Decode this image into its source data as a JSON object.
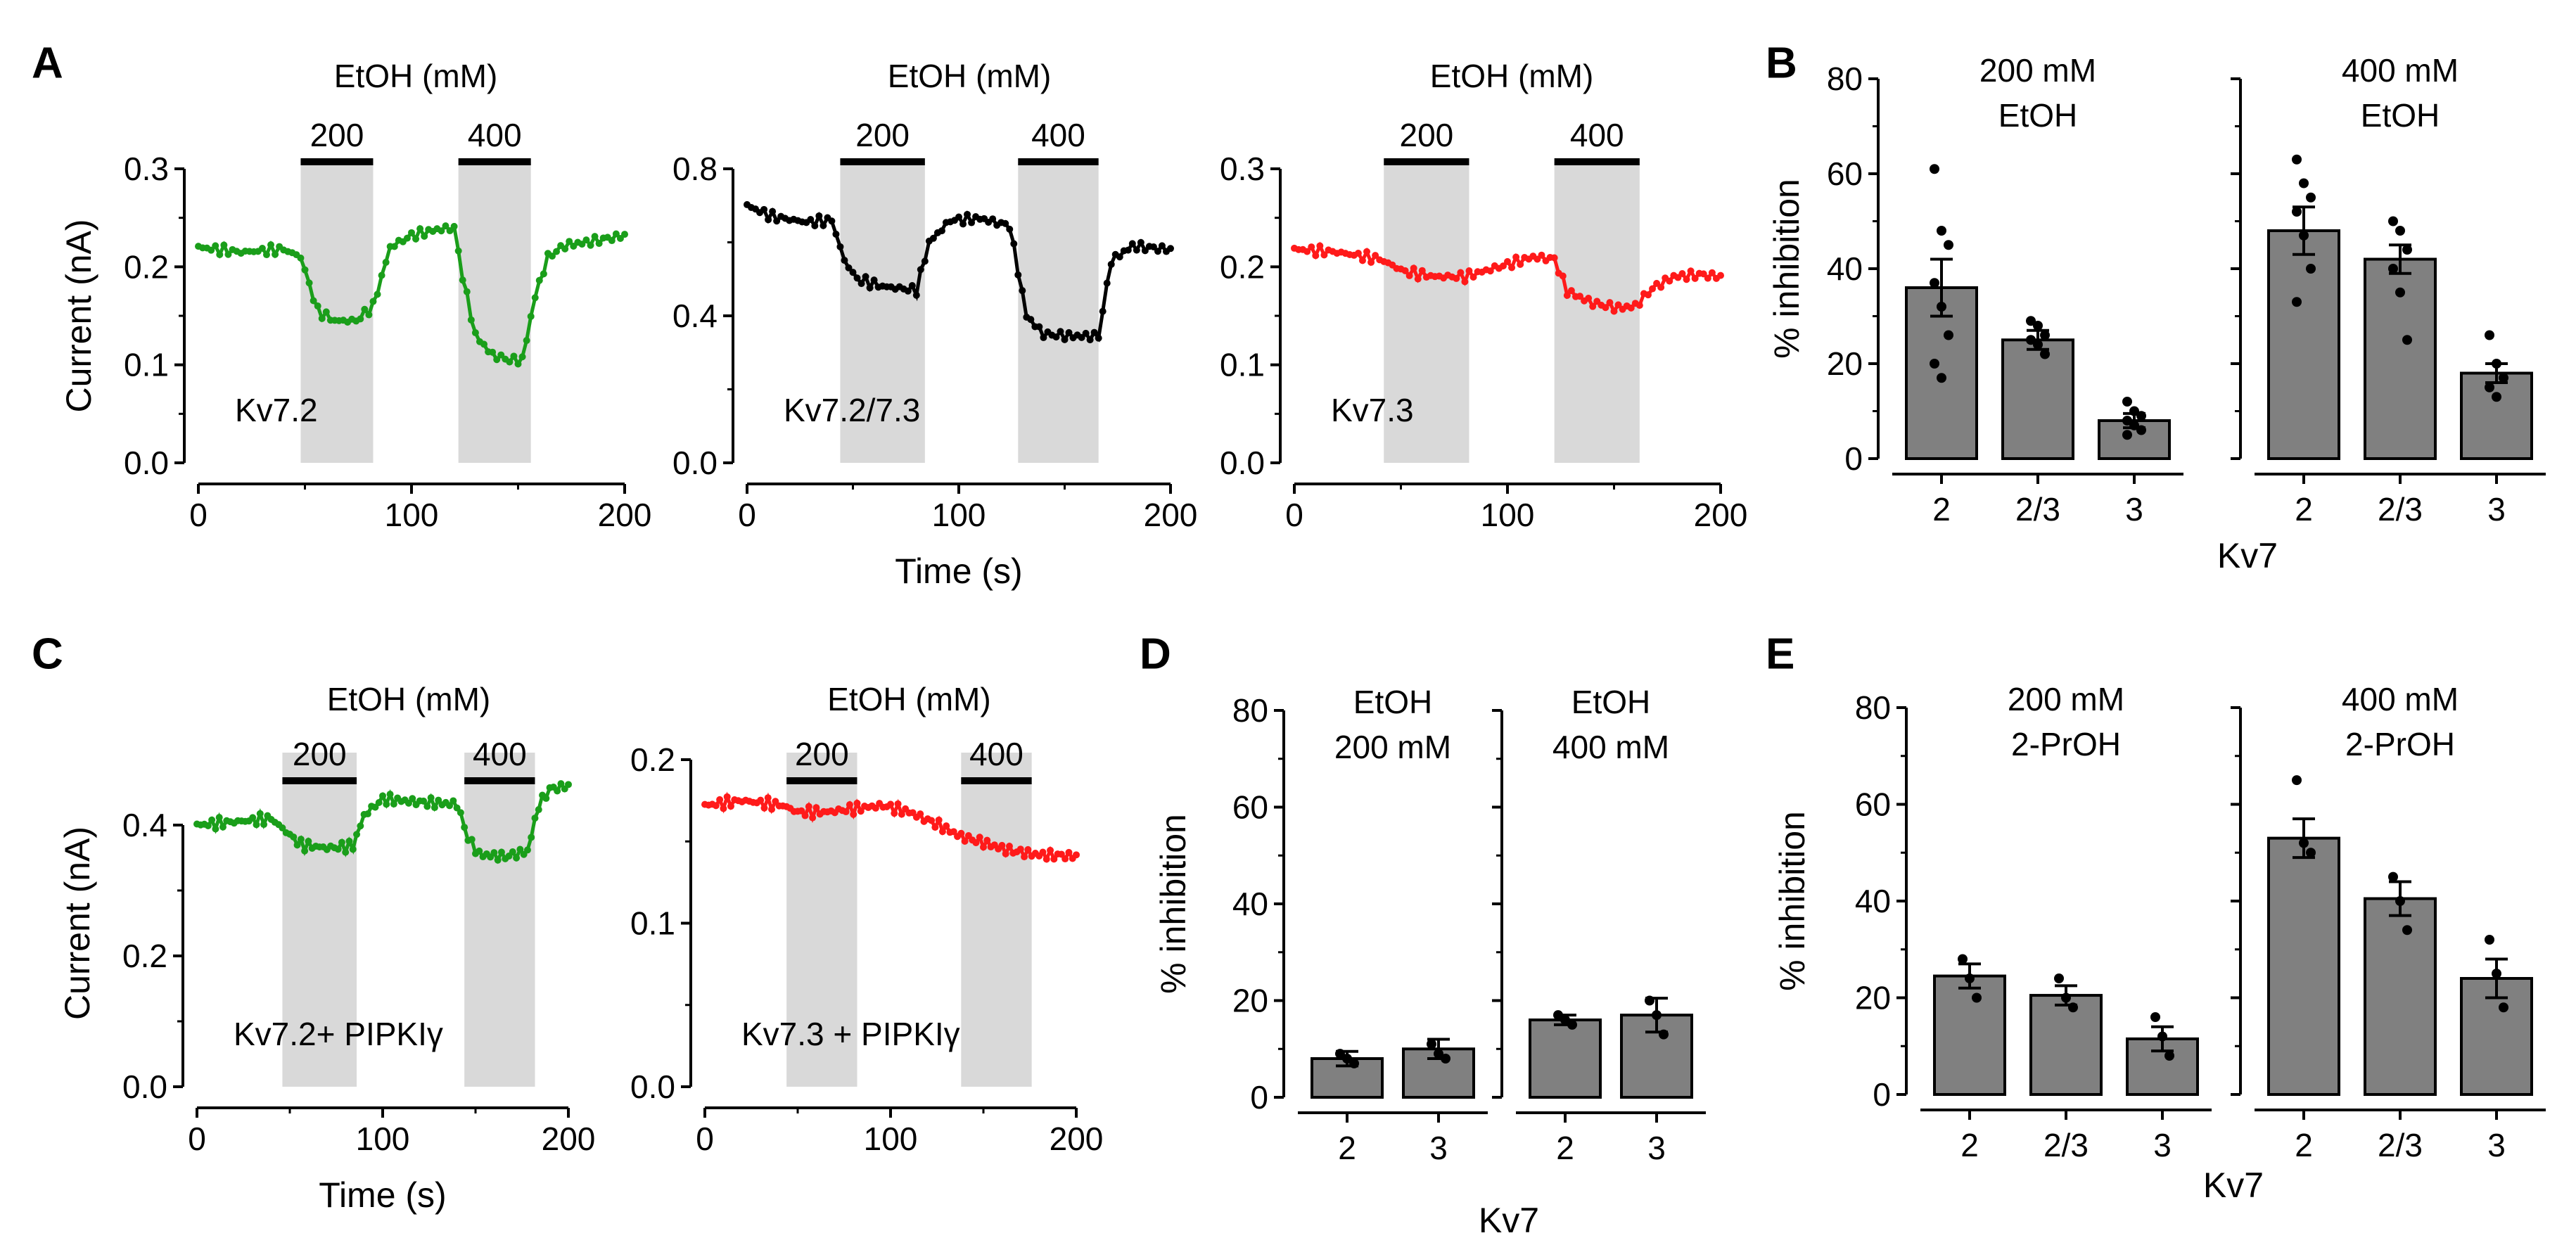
{
  "panel_labels": [
    "A",
    "B",
    "C",
    "D",
    "E"
  ],
  "axis_titles": {
    "current": "Current (nA)",
    "time": "Time (s)",
    "inhibition": "% inhibition",
    "kv7": "Kv7"
  },
  "colors": {
    "green": "#1a9e1a",
    "black": "#000000",
    "red": "#ff1a1a",
    "bar": "#808080",
    "shade": "#d9d9d9"
  },
  "chart_data": [
    {
      "id": "A1",
      "type": "line",
      "title": "EtOH  (mM)",
      "label": "Kv7.2",
      "color": "green",
      "xlim": [
        0,
        200
      ],
      "xticks": [
        0,
        100,
        200
      ],
      "ylim": [
        0,
        0.3
      ],
      "yticks": [
        0.0,
        0.1,
        0.2,
        0.3
      ],
      "ytick_labels": [
        "0.0",
        "0.1",
        "0.2",
        "0.3"
      ],
      "xlabel": "",
      "ylabel": "Current (nA)",
      "applications": [
        {
          "label": "200",
          "start": 48,
          "end": 82
        },
        {
          "label": "400",
          "start": 122,
          "end": 156
        }
      ],
      "trace": [
        [
          0,
          0.22
        ],
        [
          20,
          0.215
        ],
        [
          40,
          0.218
        ],
        [
          48,
          0.21
        ],
        [
          56,
          0.155
        ],
        [
          64,
          0.145
        ],
        [
          74,
          0.145
        ],
        [
          82,
          0.16
        ],
        [
          90,
          0.22
        ],
        [
          100,
          0.232
        ],
        [
          112,
          0.238
        ],
        [
          120,
          0.24
        ],
        [
          124,
          0.19
        ],
        [
          130,
          0.13
        ],
        [
          138,
          0.11
        ],
        [
          146,
          0.105
        ],
        [
          152,
          0.105
        ],
        [
          158,
          0.17
        ],
        [
          164,
          0.21
        ],
        [
          172,
          0.222
        ],
        [
          182,
          0.225
        ],
        [
          200,
          0.232
        ]
      ]
    },
    {
      "id": "A2",
      "type": "line",
      "title": "EtOH  (mM)",
      "label": "Kv7.2/7.3",
      "color": "black",
      "xlim": [
        0,
        200
      ],
      "xticks": [
        0,
        100,
        200
      ],
      "ylim": [
        0,
        0.8
      ],
      "yticks": [
        0.0,
        0.4,
        0.8
      ],
      "ytick_labels": [
        "0.0",
        "0.4",
        "0.8"
      ],
      "xlabel": "Time (s)",
      "ylabel": "",
      "applications": [
        {
          "label": "200",
          "start": 44,
          "end": 84
        },
        {
          "label": "400",
          "start": 128,
          "end": 166
        }
      ],
      "trace": [
        [
          0,
          0.7
        ],
        [
          12,
          0.67
        ],
        [
          28,
          0.655
        ],
        [
          40,
          0.66
        ],
        [
          46,
          0.55
        ],
        [
          52,
          0.5
        ],
        [
          64,
          0.48
        ],
        [
          80,
          0.47
        ],
        [
          86,
          0.6
        ],
        [
          96,
          0.66
        ],
        [
          110,
          0.665
        ],
        [
          124,
          0.645
        ],
        [
          132,
          0.4
        ],
        [
          140,
          0.35
        ],
        [
          154,
          0.345
        ],
        [
          166,
          0.345
        ],
        [
          172,
          0.55
        ],
        [
          182,
          0.59
        ],
        [
          200,
          0.58
        ]
      ]
    },
    {
      "id": "A3",
      "type": "line",
      "title": "EtOH  (mM)",
      "label": "Kv7.3",
      "color": "red",
      "xlim": [
        0,
        200
      ],
      "xticks": [
        0,
        100,
        200
      ],
      "ylim": [
        0,
        0.3
      ],
      "yticks": [
        0.0,
        0.1,
        0.2,
        0.3
      ],
      "ytick_labels": [
        "0.0",
        "0.1",
        "0.2",
        "0.3"
      ],
      "xlabel": "",
      "ylabel": "",
      "applications": [
        {
          "label": "200",
          "start": 42,
          "end": 82
        },
        {
          "label": "400",
          "start": 122,
          "end": 162
        }
      ],
      "trace": [
        [
          0,
          0.218
        ],
        [
          20,
          0.215
        ],
        [
          40,
          0.208
        ],
        [
          52,
          0.195
        ],
        [
          66,
          0.19
        ],
        [
          80,
          0.19
        ],
        [
          96,
          0.2
        ],
        [
          112,
          0.21
        ],
        [
          122,
          0.208
        ],
        [
          128,
          0.175
        ],
        [
          140,
          0.163
        ],
        [
          152,
          0.158
        ],
        [
          160,
          0.16
        ],
        [
          168,
          0.178
        ],
        [
          178,
          0.19
        ],
        [
          190,
          0.192
        ],
        [
          200,
          0.19
        ]
      ]
    },
    {
      "id": "C1",
      "type": "line",
      "title": "EtOH  (mM)",
      "label": "Kv7.2+ PIPKIγ",
      "color": "green",
      "xlim": [
        0,
        200
      ],
      "xticks": [
        0,
        100,
        200
      ],
      "ylim": [
        0,
        0.5
      ],
      "yticks": [
        0.0,
        0.2,
        0.4
      ],
      "ytick_labels": [
        "0.0",
        "0.2",
        "0.4"
      ],
      "xlabel": "Time (s)",
      "ylabel": "Current (nA)",
      "applications": [
        {
          "label": "200",
          "start": 46,
          "end": 86
        },
        {
          "label": "400",
          "start": 144,
          "end": 182
        }
      ],
      "trace": [
        [
          0,
          0.4
        ],
        [
          20,
          0.405
        ],
        [
          40,
          0.41
        ],
        [
          48,
          0.39
        ],
        [
          56,
          0.37
        ],
        [
          70,
          0.365
        ],
        [
          84,
          0.368
        ],
        [
          90,
          0.415
        ],
        [
          100,
          0.44
        ],
        [
          120,
          0.435
        ],
        [
          140,
          0.432
        ],
        [
          146,
          0.38
        ],
        [
          152,
          0.355
        ],
        [
          166,
          0.352
        ],
        [
          178,
          0.36
        ],
        [
          184,
          0.43
        ],
        [
          190,
          0.455
        ],
        [
          200,
          0.46
        ]
      ]
    },
    {
      "id": "C2",
      "type": "line",
      "title": "EtOH  (mM)",
      "label": "Kv7.3  + PIPKIγ",
      "color": "red",
      "xlim": [
        0,
        200
      ],
      "xticks": [
        0,
        100,
        200
      ],
      "ylim": [
        0,
        0.2
      ],
      "yticks": [
        0.0,
        0.1,
        0.2
      ],
      "ytick_labels": [
        "0.0",
        "0.1",
        "0.2"
      ],
      "xlabel": "",
      "ylabel": "",
      "applications": [
        {
          "label": "200",
          "start": 44,
          "end": 82
        },
        {
          "label": "400",
          "start": 138,
          "end": 176
        }
      ],
      "trace": [
        [
          0,
          0.172
        ],
        [
          20,
          0.175
        ],
        [
          42,
          0.172
        ],
        [
          50,
          0.168
        ],
        [
          66,
          0.168
        ],
        [
          80,
          0.17
        ],
        [
          96,
          0.172
        ],
        [
          110,
          0.168
        ],
        [
          126,
          0.16
        ],
        [
          138,
          0.153
        ],
        [
          148,
          0.15
        ],
        [
          162,
          0.145
        ],
        [
          178,
          0.142
        ],
        [
          200,
          0.141
        ]
      ]
    },
    {
      "id": "B",
      "type": "bar",
      "ylabel": "% inhibition",
      "xlabel": "Kv7",
      "ylim": [
        0,
        80
      ],
      "yticks": [
        0,
        20,
        40,
        60,
        80
      ],
      "ytick_labels": [
        "0",
        "20",
        "40",
        "60",
        "80"
      ],
      "groups": [
        {
          "title": [
            "200 mM",
            "EtOH"
          ],
          "categories": [
            "2",
            "2/3",
            "3"
          ],
          "values": [
            36,
            25,
            8
          ],
          "errors": [
            6,
            2,
            1.5
          ],
          "points": [
            [
              61,
              48,
              45,
              37,
              32,
              26,
              20,
              17
            ],
            [
              29,
              28,
              26,
              25,
              24,
              22
            ],
            [
              12,
              10,
              9,
              8,
              7,
              6,
              5
            ]
          ]
        },
        {
          "title": [
            "400 mM",
            "EtOH"
          ],
          "categories": [
            "2",
            "2/3",
            "3"
          ],
          "values": [
            48,
            42,
            18
          ],
          "errors": [
            5,
            3,
            2
          ],
          "points": [
            [
              63,
              58,
              55,
              52,
              47,
              40,
              33
            ],
            [
              50,
              48,
              44,
              40,
              35,
              25
            ],
            [
              26,
              20,
              17,
              15,
              13
            ]
          ]
        }
      ]
    },
    {
      "id": "D",
      "type": "bar",
      "ylabel": "% inhibition",
      "xlabel": "Kv7",
      "ylim": [
        0,
        80
      ],
      "yticks": [
        0,
        20,
        40,
        60,
        80
      ],
      "ytick_labels": [
        "0",
        "20",
        "40",
        "60",
        "80"
      ],
      "groups": [
        {
          "title": [
            "EtOH",
            "200 mM"
          ],
          "categories": [
            "2",
            "3"
          ],
          "values": [
            8,
            10
          ],
          "errors": [
            1.5,
            2
          ],
          "points": [
            [
              9,
              8,
              7
            ],
            [
              11,
              9,
              8
            ]
          ]
        },
        {
          "title": [
            "EtOH",
            "400 mM"
          ],
          "categories": [
            "2",
            "3"
          ],
          "values": [
            16,
            17
          ],
          "errors": [
            1,
            3.5
          ],
          "points": [
            [
              17,
              16,
              15
            ],
            [
              20,
              17,
              13
            ]
          ]
        }
      ]
    },
    {
      "id": "E",
      "type": "bar",
      "ylabel": "% inhibition",
      "xlabel": "Kv7",
      "ylim": [
        0,
        80
      ],
      "yticks": [
        0,
        20,
        40,
        60,
        80
      ],
      "ytick_labels": [
        "0",
        "20",
        "40",
        "60",
        "80"
      ],
      "groups": [
        {
          "title": [
            "200 mM",
            "2-PrOH"
          ],
          "categories": [
            "2",
            "2/3",
            "3"
          ],
          "values": [
            24.5,
            20.5,
            11.5
          ],
          "errors": [
            2.5,
            2,
            2.5
          ],
          "points": [
            [
              28,
              24,
              20
            ],
            [
              24,
              20,
              18
            ],
            [
              16,
              12,
              8
            ]
          ]
        },
        {
          "title": [
            "400 mM",
            "2-PrOH"
          ],
          "categories": [
            "2",
            "2/3",
            "3"
          ],
          "values": [
            53,
            40.5,
            24
          ],
          "errors": [
            4,
            3.5,
            4
          ],
          "points": [
            [
              65,
              52,
              50
            ],
            [
              45,
              40,
              34
            ],
            [
              32,
              25,
              18
            ]
          ]
        }
      ]
    }
  ]
}
